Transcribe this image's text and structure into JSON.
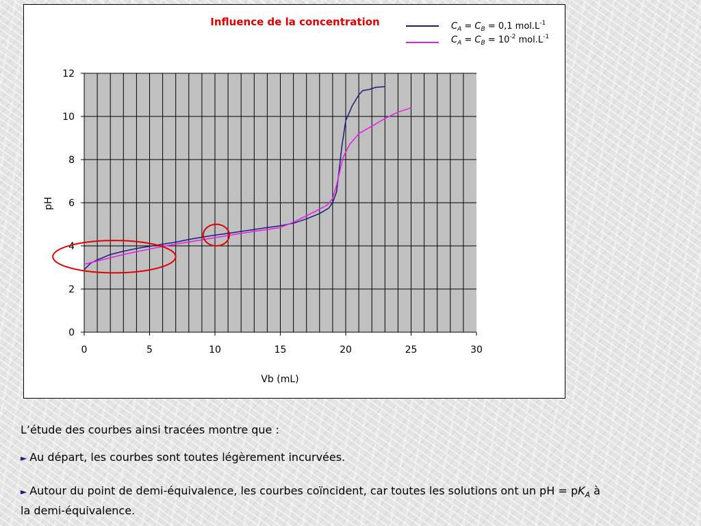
{
  "chart_data": {
    "type": "line",
    "title": "Influence de la concentration",
    "xlabel": "Vb (mL)",
    "ylabel": "pH",
    "xlim": [
      0,
      30
    ],
    "ylim": [
      0,
      12
    ],
    "x_ticks": [
      "0",
      "5",
      "10",
      "15",
      "20",
      "25",
      "30"
    ],
    "y_ticks": [
      "0",
      "2",
      "4",
      "6",
      "8",
      "10",
      "12"
    ],
    "x_grid_step": 1,
    "y_grid_step": 2,
    "grid": true,
    "plot_background": "#c0c0c0",
    "legend_position": "top-right",
    "series": [
      {
        "legend": {
          "ca": "C",
          "ca_sub": "A",
          "eq": " = ",
          "cb": "C",
          "cb_sub": "B",
          "value": " = 0,1 mol.L",
          "sup": "-1"
        },
        "color": "#1b1b7a",
        "points": [
          [
            0,
            2.9
          ],
          [
            0.5,
            3.2
          ],
          [
            1,
            3.35
          ],
          [
            2,
            3.6
          ],
          [
            3,
            3.75
          ],
          [
            4,
            3.88
          ],
          [
            5,
            3.98
          ],
          [
            6,
            4.08
          ],
          [
            7,
            4.17
          ],
          [
            8,
            4.3
          ],
          [
            9,
            4.4
          ],
          [
            10,
            4.5
          ],
          [
            11,
            4.58
          ],
          [
            12,
            4.67
          ],
          [
            13,
            4.76
          ],
          [
            14,
            4.85
          ],
          [
            15,
            4.93
          ],
          [
            16,
            5.05
          ],
          [
            17,
            5.25
          ],
          [
            18,
            5.5
          ],
          [
            18.7,
            5.75
          ],
          [
            19,
            6.0
          ],
          [
            19.3,
            6.5
          ],
          [
            19.5,
            7.5
          ],
          [
            19.7,
            8.6
          ],
          [
            20,
            9.8
          ],
          [
            20.5,
            10.5
          ],
          [
            21,
            11.0
          ],
          [
            21.3,
            11.2
          ],
          [
            21.8,
            11.25
          ],
          [
            22.3,
            11.35
          ],
          [
            23,
            11.38
          ]
        ]
      },
      {
        "legend": {
          "ca": "C",
          "ca_sub": "A",
          "eq": " = ",
          "cb": "C",
          "cb_sub": "B",
          "value": " = 10",
          "sup1": "-2",
          "value2": " mol.L",
          "sup2": "-1"
        },
        "color": "#e81ae8",
        "points": [
          [
            0,
            3.15
          ],
          [
            1,
            3.3
          ],
          [
            2,
            3.45
          ],
          [
            3,
            3.6
          ],
          [
            4,
            3.73
          ],
          [
            5,
            3.85
          ],
          [
            6,
            3.97
          ],
          [
            7,
            4.08
          ],
          [
            8,
            4.18
          ],
          [
            9,
            4.28
          ],
          [
            10,
            4.38
          ],
          [
            11,
            4.48
          ],
          [
            12,
            4.58
          ],
          [
            13,
            4.67
          ],
          [
            14,
            4.76
          ],
          [
            15,
            4.85
          ],
          [
            16,
            5.1
          ],
          [
            17,
            5.4
          ],
          [
            18,
            5.7
          ],
          [
            18.6,
            5.9
          ],
          [
            19,
            6.2
          ],
          [
            19.3,
            6.8
          ],
          [
            19.6,
            7.6
          ],
          [
            19.8,
            8.1
          ],
          [
            20.3,
            8.7
          ],
          [
            21,
            9.2
          ],
          [
            22,
            9.55
          ],
          [
            23,
            9.9
          ],
          [
            24,
            10.2
          ],
          [
            25,
            10.4
          ]
        ]
      }
    ],
    "annotations": [
      {
        "shape": "ellipse",
        "color": "#e00000",
        "center": [
          2.3,
          3.5
        ],
        "radii_x": 4.7,
        "radii_y": 0.75
      },
      {
        "shape": "ellipse",
        "color": "#e00000",
        "center": [
          10.1,
          4.5
        ],
        "radii_x": 1.0,
        "radii_y": 0.5
      }
    ],
    "colors": {
      "title": "#e00000"
    }
  },
  "text": {
    "intro": "L’étude des courbes ainsi tracées montre que :",
    "bullet1": "Au départ, les courbes sont toutes légèrement incurvées.",
    "bullet2_a": "Autour du point de demi-équivalence, les courbes coïncident, car toutes les solutions ont un pH = p",
    "bullet2_k": "K",
    "bullet2_ksub": "A",
    "bullet2_b": " à",
    "bullet2_line2": "la demi-équivalence.",
    "bullet_glyph": "►"
  }
}
